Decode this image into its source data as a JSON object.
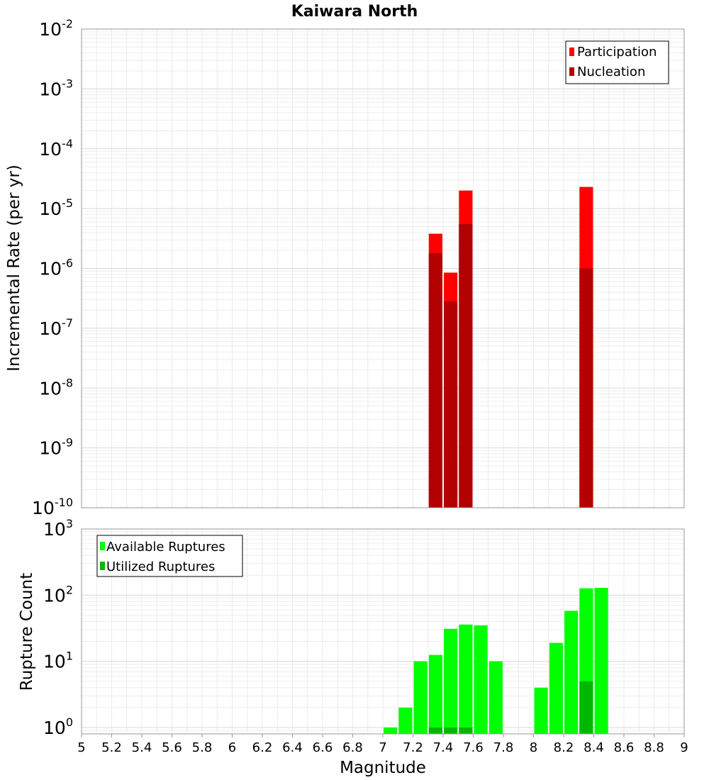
{
  "chart_data": [
    {
      "type": "bar",
      "title": "Kaiwara North",
      "xlabel": "",
      "ylabel": "Incremental Rate (per yr)",
      "xlim": [
        5,
        9
      ],
      "ylim": [
        1e-10,
        0.01
      ],
      "yscale": "log",
      "grid": true,
      "legend": "top-right",
      "bar_width": 0.09,
      "yticks": [
        {
          "base": "10",
          "exp": "-10",
          "value": 1e-10
        },
        {
          "base": "10",
          "exp": "-9",
          "value": 1e-09
        },
        {
          "base": "10",
          "exp": "-8",
          "value": 1e-08
        },
        {
          "base": "10",
          "exp": "-7",
          "value": 1e-07
        },
        {
          "base": "10",
          "exp": "-6",
          "value": 1e-06
        },
        {
          "base": "10",
          "exp": "-5",
          "value": 1e-05
        },
        {
          "base": "10",
          "exp": "-4",
          "value": 0.0001
        },
        {
          "base": "10",
          "exp": "-3",
          "value": 0.001
        },
        {
          "base": "10",
          "exp": "-2",
          "value": 0.01
        }
      ],
      "series": [
        {
          "name": "Participation",
          "color": "#ff0000",
          "x": [
            7.35,
            7.45,
            7.55,
            8.35
          ],
          "values": [
            3.8e-06,
            8.5e-07,
            2e-05,
            2.3e-05
          ]
        },
        {
          "name": "Nucleation",
          "color": "#b30000",
          "x": [
            7.35,
            7.45,
            7.55,
            8.35
          ],
          "values": [
            1.8e-06,
            2.8e-07,
            5.5e-06,
            1e-06
          ]
        }
      ]
    },
    {
      "type": "bar",
      "title": "",
      "xlabel": "Magnitude",
      "ylabel": "Rupture Count",
      "xlim": [
        5,
        9
      ],
      "ylim": [
        0.8,
        1000
      ],
      "yscale": "log",
      "grid": true,
      "legend": "top-left",
      "bar_width": 0.09,
      "xticks": [
        "5",
        "5.2",
        "5.4",
        "5.6",
        "5.8",
        "6",
        "6.2",
        "6.4",
        "6.6",
        "6.8",
        "7",
        "7.2",
        "7.4",
        "7.6",
        "7.8",
        "8",
        "8.2",
        "8.4",
        "8.6",
        "8.8",
        "9"
      ],
      "yticks": [
        {
          "base": "10",
          "exp": "0",
          "value": 1
        },
        {
          "base": "10",
          "exp": "1",
          "value": 10
        },
        {
          "base": "10",
          "exp": "2",
          "value": 100
        },
        {
          "base": "10",
          "exp": "3",
          "value": 1000
        }
      ],
      "series": [
        {
          "name": "Available Ruptures",
          "color": "#00ff00",
          "x": [
            7.05,
            7.15,
            7.25,
            7.35,
            7.45,
            7.55,
            7.65,
            7.75,
            8.05,
            8.15,
            8.25,
            8.35,
            8.45
          ],
          "values": [
            1,
            2,
            10,
            12.5,
            31,
            36,
            35,
            10,
            4,
            19,
            58,
            127,
            129
          ]
        },
        {
          "name": "Utilized Ruptures",
          "color": "#00b800",
          "x": [
            7.35,
            7.45,
            7.55,
            8.35
          ],
          "values": [
            1,
            1,
            1,
            5
          ]
        }
      ]
    }
  ]
}
